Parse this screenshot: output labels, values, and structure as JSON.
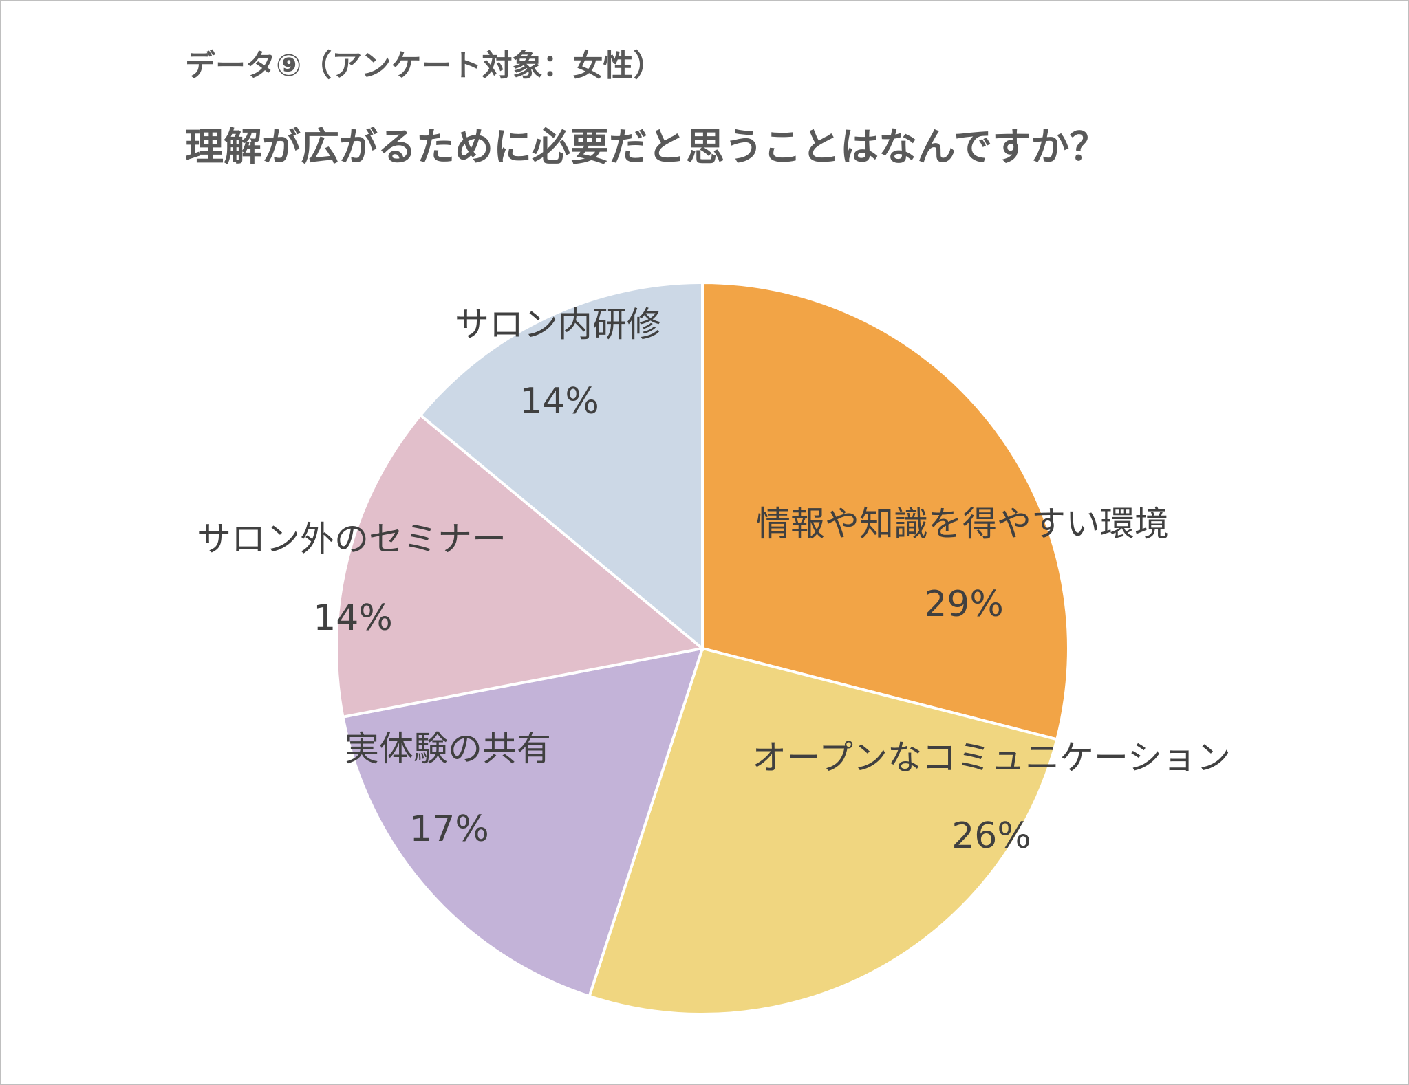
{
  "subtitle": "データ⑨（アンケート対象：女性）",
  "title": "理解が広がるために必要だと思うことはなんですか？",
  "chart_data": {
    "type": "pie",
    "title": "理解が広がるために必要だと思うことはなんですか？",
    "categories": [
      "情報や知識を得やすい環境",
      "オープンなコミュニケーション",
      "実体験の共有",
      "サロン外のセミナー",
      "サロン内研修"
    ],
    "values": [
      29,
      26,
      17,
      14,
      14
    ],
    "labels": [
      "29%",
      "26%",
      "17%",
      "14%",
      "14%"
    ],
    "unit": "%",
    "colors": [
      "#F2A446",
      "#F0D680",
      "#C3B3D8",
      "#E2BFCB",
      "#CCD8E6"
    ],
    "start": "12 o'clock, clockwise",
    "legend": "none (labels on slices)"
  }
}
